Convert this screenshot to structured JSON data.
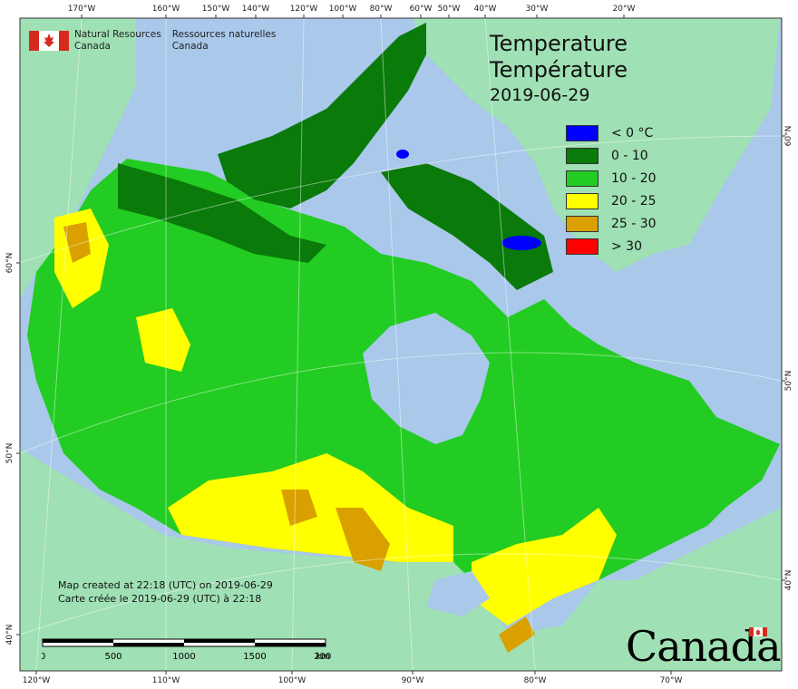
{
  "title": {
    "en": "Temperature",
    "fr": "Température",
    "date": "2019-06-29"
  },
  "legend": {
    "items": [
      {
        "label": "< 0 °C",
        "color": "#0000ff"
      },
      {
        "label": "0 - 10",
        "color": "#0a7a0a"
      },
      {
        "label": "10 - 20",
        "color": "#22cc22"
      },
      {
        "label": "20 - 25",
        "color": "#ffff00"
      },
      {
        "label": "25 - 30",
        "color": "#d9a000"
      },
      {
        "label": "> 30",
        "color": "#ff0000"
      }
    ]
  },
  "agency": {
    "en_line1": "Natural Resources",
    "en_line2": "Canada",
    "fr_line1": "Ressources naturelles",
    "fr_line2": "Canada"
  },
  "created": {
    "en": "Map created at 22:18 (UTC) on 2019-06-29",
    "fr": "Carte créée le 2019-06-29 (UTC) à 22:18"
  },
  "scale": {
    "ticks": [
      "0",
      "500",
      "1000",
      "1500",
      "2000"
    ],
    "unit": "km"
  },
  "wordmark": "Canada",
  "axes": {
    "top": [
      "170°W",
      "160°W",
      "150°W",
      "140°W",
      "120°W",
      "100°W",
      "80°W",
      "60°W",
      "50°W",
      "40°W",
      "30°W",
      "20°W"
    ],
    "bottom": [
      "120°W",
      "110°W",
      "100°W",
      "90°W",
      "80°W",
      "70°W"
    ],
    "left": [
      "60°N",
      "50°N",
      "40°N"
    ],
    "right": [
      "60°N",
      "50°N",
      "40°N"
    ]
  },
  "colors": {
    "ocean": "#a9c8ea",
    "foreign_land": "#9fe0b4",
    "frame": "#333333"
  }
}
